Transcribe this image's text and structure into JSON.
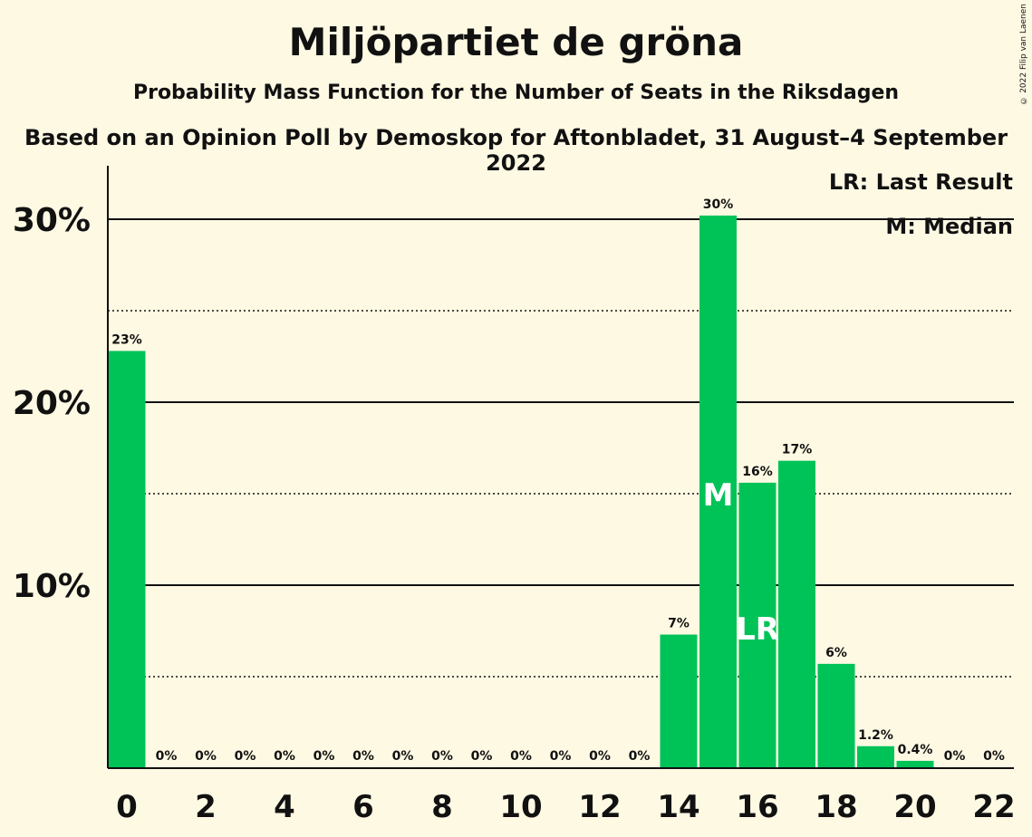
{
  "title": "Miljöpartiet de gröna",
  "subtitle": "Probability Mass Function for the Number of Seats in the Riksdagen",
  "subtitle2": "Based on an Opinion Poll by Demoskop for Aftonbladet, 31 August–4 September 2022",
  "copyright": "© 2022 Filip van Laenen",
  "legend": {
    "last_result": "LR: Last Result",
    "median": "M: Median"
  },
  "colors": {
    "bar": "#00c358",
    "background": "#fef9e3"
  },
  "chart_data": {
    "type": "bar",
    "categories": [
      0,
      1,
      2,
      3,
      4,
      5,
      6,
      7,
      8,
      9,
      10,
      11,
      12,
      13,
      14,
      15,
      16,
      17,
      18,
      19,
      20,
      21,
      22
    ],
    "values": [
      22.8,
      0,
      0,
      0,
      0,
      0,
      0,
      0,
      0,
      0,
      0,
      0,
      0,
      0,
      7.3,
      30.2,
      15.6,
      16.8,
      5.7,
      1.2,
      0.4,
      0,
      0
    ],
    "labels": [
      "23%",
      "0%",
      "0%",
      "0%",
      "0%",
      "0%",
      "0%",
      "0%",
      "0%",
      "0%",
      "0%",
      "0%",
      "0%",
      "0%",
      "7%",
      "30%",
      "16%",
      "17%",
      "6%",
      "1.2%",
      "0.4%",
      "0%",
      "0%"
    ],
    "x_tick_values": [
      0,
      2,
      4,
      6,
      8,
      10,
      12,
      14,
      16,
      18,
      20,
      22
    ],
    "y_ticks": [
      {
        "value": 10,
        "label": "10%"
      },
      {
        "value": 20,
        "label": "20%"
      },
      {
        "value": 30,
        "label": "30%"
      }
    ],
    "y_minor_gridlines": [
      5,
      15,
      25
    ],
    "ylim": [
      0,
      33
    ],
    "median_seat": 15,
    "median_marker": "M",
    "last_result_seat": 16,
    "last_result_marker": "LR",
    "grid": true,
    "legend_position": "top-right"
  }
}
